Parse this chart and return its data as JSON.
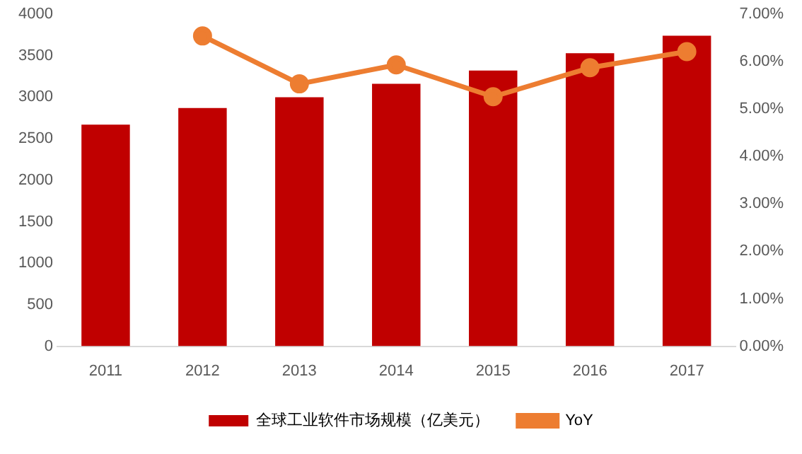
{
  "chart_data": {
    "type": "bar",
    "categories": [
      "2011",
      "2012",
      "2013",
      "2014",
      "2015",
      "2016",
      "2017"
    ],
    "series": [
      {
        "name": "全球工业软件市场规模（亿美元）",
        "color": "#c00000",
        "values": [
          2670,
          2870,
          3000,
          3160,
          3320,
          3530,
          3740
        ]
      },
      {
        "name": "YoY",
        "type": "line",
        "axis": "y2",
        "color": "#ed7d31",
        "values": [
          null,
          6.54,
          5.53,
          5.93,
          5.26,
          5.87,
          6.21
        ]
      }
    ],
    "ylim": [
      0,
      4000
    ],
    "yticks": [
      0,
      500,
      1000,
      1500,
      2000,
      2500,
      3000,
      3500,
      4000
    ],
    "y2lim": [
      0,
      7
    ],
    "y2ticks": [
      {
        "value": 0,
        "label": "0.00%"
      },
      {
        "value": 1,
        "label": "1.00%"
      },
      {
        "value": 2,
        "label": "2.00%"
      },
      {
        "value": 3,
        "label": "3.00%"
      },
      {
        "value": 4,
        "label": "4.00%"
      },
      {
        "value": 5,
        "label": "5.00%"
      },
      {
        "value": 6,
        "label": "6.00%"
      },
      {
        "value": 7,
        "label": "7.00%"
      }
    ],
    "grid": false,
    "legend": "bottom",
    "marker": "circle"
  }
}
